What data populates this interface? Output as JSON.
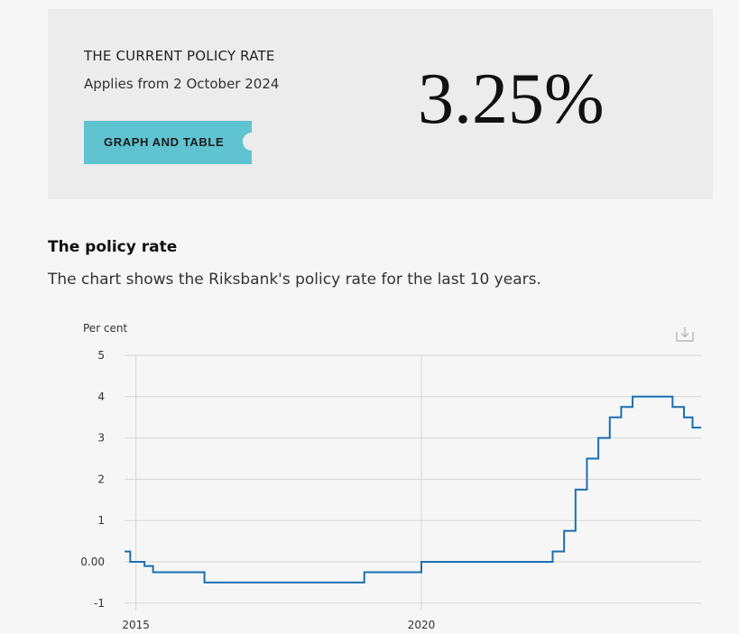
{
  "hero": {
    "title": "THE CURRENT POLICY RATE",
    "subtitle": "Applies from 2 October 2024",
    "button_label": "GRAPH AND TABLE",
    "rate": "3.25%",
    "accent_color": "#5fc3d0"
  },
  "section": {
    "title": "The policy rate",
    "description": "The chart shows the Riksbank's policy rate for the last 10 years."
  },
  "icons": {
    "download": "download-icon"
  },
  "chart_data": {
    "type": "line",
    "step": true,
    "ylabel": "Per cent",
    "xlabel": "",
    "ylim": [
      -1,
      5
    ],
    "yticks": [
      -1,
      0,
      1,
      2,
      3,
      4,
      5
    ],
    "ytick_labels": [
      "-1",
      "0.00",
      "1",
      "2",
      "3",
      "4",
      "5"
    ],
    "xticks": [
      2015,
      2020
    ],
    "xtick_labels": [
      "2015",
      "2020"
    ],
    "xlim": [
      2014.8,
      2024.9
    ],
    "grid": true,
    "line_color": "#1a6fb0",
    "series": [
      {
        "x": [
          2014.8,
          2014.9,
          2015.15,
          2015.3,
          2016.2,
          2019.0,
          2020.0,
          2022.3,
          2022.5,
          2022.7,
          2022.9,
          2023.1,
          2023.3,
          2023.5,
          2023.7,
          2024.4,
          2024.6,
          2024.75,
          2024.9
        ],
        "values": [
          0.25,
          0.0,
          -0.1,
          -0.25,
          -0.5,
          -0.25,
          0.0,
          0.25,
          0.75,
          1.75,
          2.5,
          3.0,
          3.5,
          3.75,
          4.0,
          3.75,
          3.5,
          3.25,
          3.25
        ]
      }
    ]
  }
}
